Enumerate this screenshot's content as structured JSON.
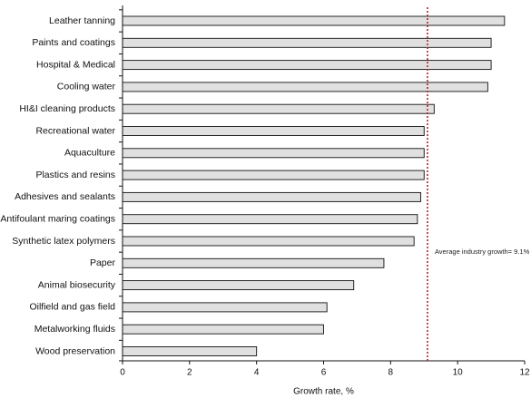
{
  "chart_data": {
    "type": "bar",
    "orientation": "horizontal",
    "categories": [
      "Leather tanning",
      "Paints and coatings",
      "Hospital & Medical",
      "Cooling water",
      "HI&I cleaning products",
      "Recreational water",
      "Aquaculture",
      "Plastics and resins",
      "Adhesives and sealants",
      "Antifoulant maring coatings",
      "Synthetic latex polymers",
      "Paper",
      "Animal biosecurity",
      "Oilfield and gas field",
      "Metalworking fluids",
      "Wood preservation"
    ],
    "values": [
      11.4,
      11.0,
      11.0,
      10.9,
      9.3,
      9.0,
      9.0,
      9.0,
      8.9,
      8.8,
      8.7,
      7.8,
      6.9,
      6.1,
      6.0,
      4.0
    ],
    "xlabel": "Growth rate, %",
    "xlim": [
      0,
      12
    ],
    "xticks": [
      0,
      2,
      4,
      6,
      8,
      10,
      12
    ],
    "grid": false,
    "legend": "none",
    "annotation": {
      "text": "Average industry growth= 9.1%",
      "x": 9.1
    },
    "colors": {
      "bar_fill": "#e0e0e0",
      "bar_stroke": "#111111",
      "axis": "#111111",
      "reference_line": "#c0202a"
    }
  }
}
